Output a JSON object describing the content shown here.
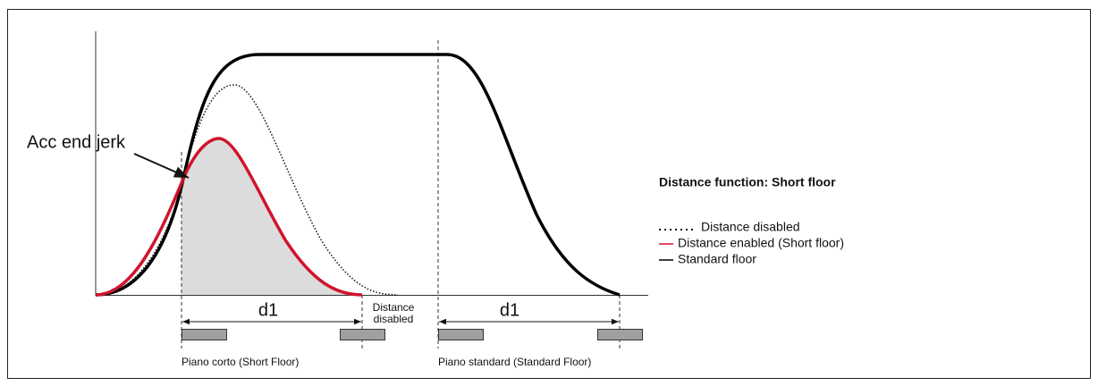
{
  "annotation": "Acc end jerk",
  "distances": [
    {
      "label": "d1"
    },
    {
      "label": "d1"
    }
  ],
  "disabled_note": [
    "Distance",
    "disabled"
  ],
  "floors": [
    "Piano corto (Short Floor)",
    "Piano standard (Standard Floor)"
  ],
  "legend": {
    "title": "Distance function: Short floor",
    "items": [
      "Distance disabled",
      "Distance enabled (Short floor)",
      "Standard floor"
    ]
  }
}
